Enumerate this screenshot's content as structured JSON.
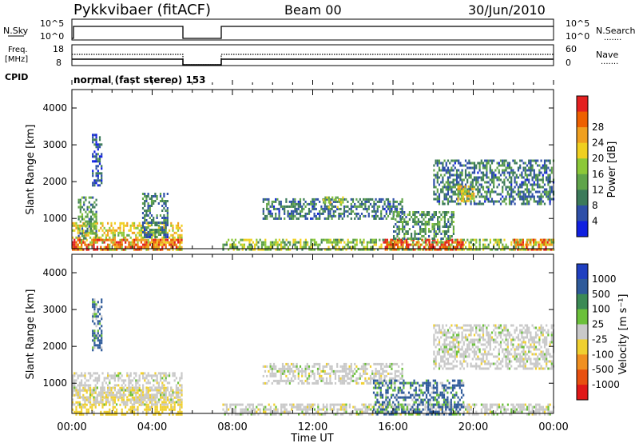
{
  "header": {
    "title": "Pykkvibaer (fitACF)",
    "beam": "Beam 00",
    "date": "30/Jun/2010"
  },
  "strip_panels": {
    "nsky_label": "N.Sky",
    "nsearch_label": "N.Search",
    "freq_label_line1": "Freq.",
    "freq_label_line2": "[MHz]",
    "nave_label": "Nave",
    "cpid_label": "CPID",
    "cpid_text": "normal (fast stereo) 153",
    "nsky_ticks": [
      "10^5",
      "10^0"
    ],
    "nsearch_ticks": [
      "10^5",
      "10^0"
    ],
    "freq_ticks": [
      "18",
      "8"
    ],
    "nave_ticks": [
      "60",
      "0"
    ],
    "dotted_key": "......."
  },
  "axes": {
    "y_label": "Slant Range [km]",
    "x_label": "Time UT",
    "y_ticks": [
      "1000",
      "2000",
      "3000",
      "4000"
    ],
    "x_ticks": [
      "00:00",
      "04:00",
      "08:00",
      "12:00",
      "16:00",
      "20:00",
      "00:00"
    ]
  },
  "power_colorbar": {
    "label": "Power [dB]",
    "ticks": [
      "4",
      "8",
      "12",
      "16",
      "20",
      "24",
      "28"
    ],
    "colors": [
      "#1020e0",
      "#2e4fa8",
      "#3c7a5a",
      "#60a44a",
      "#8cc838",
      "#f0d020",
      "#f0a020",
      "#ee6000",
      "#e42020"
    ]
  },
  "velocity_colorbar": {
    "label": "Velocity [m s⁻¹]",
    "ticks": [
      "1000",
      "500",
      "100",
      "25",
      "-25",
      "-100",
      "-500",
      "-1000"
    ],
    "colors": [
      "#1f3fc0",
      "#2e5a9a",
      "#3b8a55",
      "#6bc03a",
      "#c9c9c9",
      "#f0d030",
      "#f09020",
      "#e85010",
      "#e01818"
    ]
  },
  "chart_data": [
    {
      "type": "line",
      "name": "N.Sky / N.Search",
      "x_unit": "hours UT",
      "gap_hours": [
        5.5,
        7.5
      ],
      "xlim": [
        0,
        24
      ],
      "values": "near constant high level across valid intervals"
    },
    {
      "type": "line",
      "name": "Freq. / Nave",
      "xlim": [
        0,
        24
      ],
      "freq_mhz_level": 10,
      "nave_level": 24
    },
    {
      "type": "heatmap",
      "name": "Power",
      "xlabel": "Time UT",
      "ylabel": "Slant Range [km]",
      "xlim": [
        0,
        24
      ],
      "ylim": [
        180,
        4500
      ],
      "clim": [
        0,
        30
      ],
      "regions": [
        {
          "t": [
            0,
            5.5
          ],
          "r": [
            180,
            900
          ],
          "level": 18
        },
        {
          "t": [
            0,
            5.5
          ],
          "r": [
            180,
            450
          ],
          "level": 26
        },
        {
          "t": [
            0.3,
            1.2
          ],
          "r": [
            450,
            1600
          ],
          "level": 10
        },
        {
          "t": [
            1.0,
            1.5
          ],
          "r": [
            1900,
            3300
          ],
          "level": 6
        },
        {
          "t": [
            3.5,
            4.8
          ],
          "r": [
            500,
            1700
          ],
          "level": 8
        },
        {
          "t": [
            7.5,
            24
          ],
          "r": [
            180,
            450
          ],
          "level": 14
        },
        {
          "t": [
            15.5,
            19.5
          ],
          "r": [
            180,
            450
          ],
          "level": 26
        },
        {
          "t": [
            22.0,
            24
          ],
          "r": [
            180,
            450
          ],
          "level": 24
        },
        {
          "t": [
            9.5,
            16.5
          ],
          "r": [
            1000,
            1550
          ],
          "level": 8
        },
        {
          "t": [
            12.5,
            13.5
          ],
          "r": [
            1300,
            1600
          ],
          "level": 16
        },
        {
          "t": [
            16,
            19
          ],
          "r": [
            450,
            1200
          ],
          "level": 10
        },
        {
          "t": [
            18,
            24
          ],
          "r": [
            1400,
            2600
          ],
          "level": 8
        },
        {
          "t": [
            19.2,
            20
          ],
          "r": [
            1500,
            1900
          ],
          "level": 18
        }
      ]
    },
    {
      "type": "heatmap",
      "name": "Velocity",
      "xlabel": "Time UT",
      "ylabel": "Slant Range [km]",
      "xlim": [
        0,
        24
      ],
      "ylim": [
        180,
        4500
      ],
      "clim": [
        -1000,
        1000
      ],
      "regions": [
        {
          "t": [
            0,
            5.5
          ],
          "r": [
            180,
            900
          ],
          "level": -50
        },
        {
          "t": [
            0,
            5.5
          ],
          "r": [
            400,
            1300
          ],
          "level": 0
        },
        {
          "t": [
            1.0,
            1.5
          ],
          "r": [
            1900,
            3300
          ],
          "level": 150
        },
        {
          "t": [
            7.5,
            24
          ],
          "r": [
            180,
            450
          ],
          "level": 0
        },
        {
          "t": [
            9.5,
            16.5
          ],
          "r": [
            1000,
            1550
          ],
          "level": 0
        },
        {
          "t": [
            15,
            19.5
          ],
          "r": [
            180,
            1100
          ],
          "level": 150
        },
        {
          "t": [
            18,
            24
          ],
          "r": [
            1400,
            2600
          ],
          "level": 0
        }
      ]
    }
  ]
}
